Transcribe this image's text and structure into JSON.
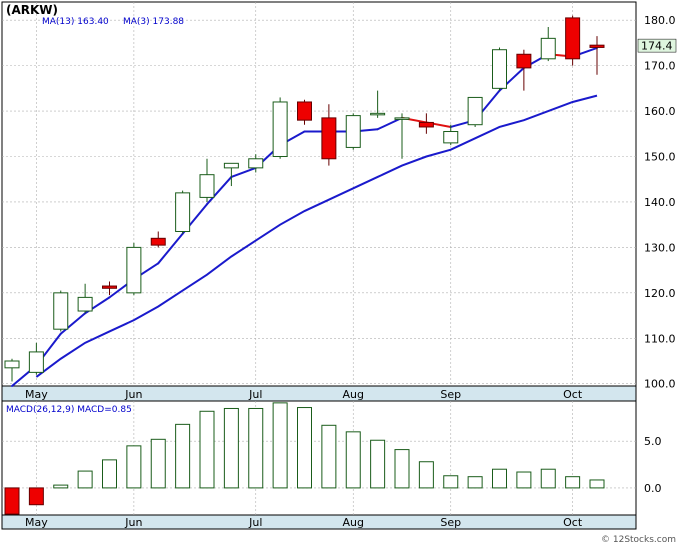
{
  "chart_data": [
    {
      "type": "candlestick",
      "title": "(ARKW)",
      "legend": [
        {
          "label": "MA(13)",
          "value": "163.40"
        },
        {
          "label": "MA(3)",
          "value": "173.88"
        }
      ],
      "last_price_label": "174.4",
      "months": [
        "May",
        "Jun",
        "Jul",
        "Aug",
        "Sep",
        "Oct"
      ],
      "y_ticks": [
        "100.0",
        "110.0",
        "120.0",
        "130.0",
        "140.0",
        "150.0",
        "160.0",
        "170.0",
        "180.0"
      ],
      "ylim": [
        99.5,
        184
      ],
      "grid": true,
      "candles": [
        {
          "o": 103.5,
          "h": 105.5,
          "l": 100.5,
          "c": 105.0
        },
        {
          "o": 102.5,
          "h": 109.0,
          "l": 102.0,
          "c": 107.0
        },
        {
          "o": 112.0,
          "h": 120.5,
          "l": 111.5,
          "c": 120.0
        },
        {
          "o": 116.0,
          "h": 122.0,
          "l": 115.5,
          "c": 119.0
        },
        {
          "o": 121.5,
          "h": 122.5,
          "l": 119.5,
          "c": 121.0
        },
        {
          "o": 120.0,
          "h": 131.0,
          "l": 119.5,
          "c": 130.0
        },
        {
          "o": 132.0,
          "h": 133.5,
          "l": 130.0,
          "c": 130.5
        },
        {
          "o": 133.5,
          "h": 142.5,
          "l": 133.0,
          "c": 142.0
        },
        {
          "o": 141.0,
          "h": 149.5,
          "l": 140.0,
          "c": 146.0
        },
        {
          "o": 147.5,
          "h": 148.5,
          "l": 143.5,
          "c": 148.5
        },
        {
          "o": 147.5,
          "h": 150.5,
          "l": 146.5,
          "c": 149.5
        },
        {
          "o": 150.0,
          "h": 163.0,
          "l": 149.5,
          "c": 162.0
        },
        {
          "o": 162.0,
          "h": 162.5,
          "l": 157.0,
          "c": 158.0
        },
        {
          "o": 158.5,
          "h": 161.5,
          "l": 148.0,
          "c": 149.5
        },
        {
          "o": 152.0,
          "h": 159.5,
          "l": 151.5,
          "c": 159.0
        },
        {
          "o": 159.5,
          "h": 164.5,
          "l": 158.5,
          "c": 159.5
        },
        {
          "o": 158.5,
          "h": 159.5,
          "l": 149.5,
          "c": 158.5
        },
        {
          "o": 157.5,
          "h": 159.5,
          "l": 155.0,
          "c": 156.5
        },
        {
          "o": 153.0,
          "h": 157.0,
          "l": 152.5,
          "c": 155.5
        },
        {
          "o": 157.0,
          "h": 163.0,
          "l": 156.5,
          "c": 163.0
        },
        {
          "o": 165.0,
          "h": 174.0,
          "l": 164.5,
          "c": 173.5
        },
        {
          "o": 172.5,
          "h": 173.5,
          "l": 164.5,
          "c": 169.5
        },
        {
          "o": 171.5,
          "h": 178.5,
          "l": 171.0,
          "c": 176.0
        },
        {
          "o": 180.5,
          "h": 181.0,
          "l": 170.0,
          "c": 171.5
        },
        {
          "o": 174.5,
          "h": 176.5,
          "l": 168.0,
          "c": 174.0
        }
      ],
      "ma13": [
        null,
        101.5,
        105.5,
        109.0,
        111.5,
        114.0,
        117.0,
        120.5,
        124.0,
        128.0,
        131.5,
        135.0,
        138.0,
        140.5,
        143.0,
        145.5,
        148.0,
        150.0,
        151.5,
        154.0,
        156.5,
        158.0,
        160.0,
        162.0,
        163.4
      ],
      "ma3": [
        99.5,
        104.0,
        111.0,
        115.5,
        119.0,
        123.0,
        126.5,
        133.0,
        139.5,
        145.5,
        147.5,
        152.5,
        155.5,
        155.5,
        155.5,
        156.0,
        158.5,
        157.5,
        156.5,
        158.0,
        164.5,
        169.5,
        172.5,
        172.0,
        173.88
      ]
    },
    {
      "type": "bar",
      "title": "MACD(26,12,9)",
      "legend": [
        {
          "label": "MACD",
          "value": "0.85"
        }
      ],
      "y_ticks": [
        "5.0",
        "0.0"
      ],
      "ylim": [
        -2.9,
        9.3
      ],
      "values": [
        -2.8,
        -1.8,
        0.3,
        1.8,
        3.0,
        4.5,
        5.2,
        6.8,
        8.2,
        8.5,
        8.5,
        9.1,
        8.6,
        6.7,
        6.0,
        5.1,
        4.1,
        2.8,
        1.3,
        1.2,
        2.0,
        1.7,
        2.0,
        1.2,
        0.85
      ]
    }
  ],
  "watermark": "© 12Stocks.com"
}
